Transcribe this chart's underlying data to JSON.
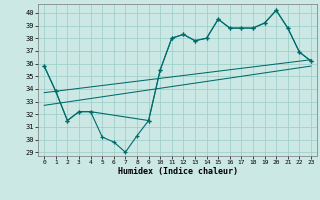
{
  "xlabel": "Humidex (Indice chaleur)",
  "bg_color": "#cce8e4",
  "grid_color": "#99ccc6",
  "line_color": "#006b6b",
  "xlim": [
    -0.5,
    23.5
  ],
  "ylim": [
    28.7,
    40.7
  ],
  "yticks": [
    29,
    30,
    31,
    32,
    33,
    34,
    35,
    36,
    37,
    38,
    39,
    40
  ],
  "xticks": [
    0,
    1,
    2,
    3,
    4,
    5,
    6,
    7,
    8,
    9,
    10,
    11,
    12,
    13,
    14,
    15,
    16,
    17,
    18,
    19,
    20,
    21,
    22,
    23
  ],
  "line1_x": [
    0,
    1,
    2,
    3,
    4,
    5,
    6,
    7,
    8,
    9,
    10,
    11,
    12,
    13,
    14,
    15,
    16,
    17,
    18,
    19,
    20,
    21,
    22,
    23
  ],
  "line1_y": [
    35.8,
    33.8,
    31.5,
    32.2,
    32.2,
    30.2,
    29.8,
    29.0,
    30.3,
    31.5,
    35.5,
    38.0,
    38.3,
    37.8,
    38.0,
    39.5,
    38.8,
    38.8,
    38.8,
    39.2,
    40.2,
    38.8,
    36.9,
    36.2
  ],
  "line2_x": [
    0,
    1,
    2,
    3,
    4,
    9,
    10,
    11,
    12,
    13,
    14,
    15,
    16,
    17,
    18,
    19,
    20,
    21,
    22,
    23
  ],
  "line2_y": [
    35.8,
    33.8,
    31.5,
    32.2,
    32.2,
    31.5,
    35.5,
    38.0,
    38.3,
    37.8,
    38.0,
    39.5,
    38.8,
    38.8,
    38.8,
    39.2,
    40.2,
    38.8,
    36.9,
    36.2
  ],
  "trend1_x": [
    0,
    23
  ],
  "trend1_y": [
    33.7,
    36.3
  ],
  "trend2_x": [
    0,
    23
  ],
  "trend2_y": [
    32.7,
    35.8
  ]
}
